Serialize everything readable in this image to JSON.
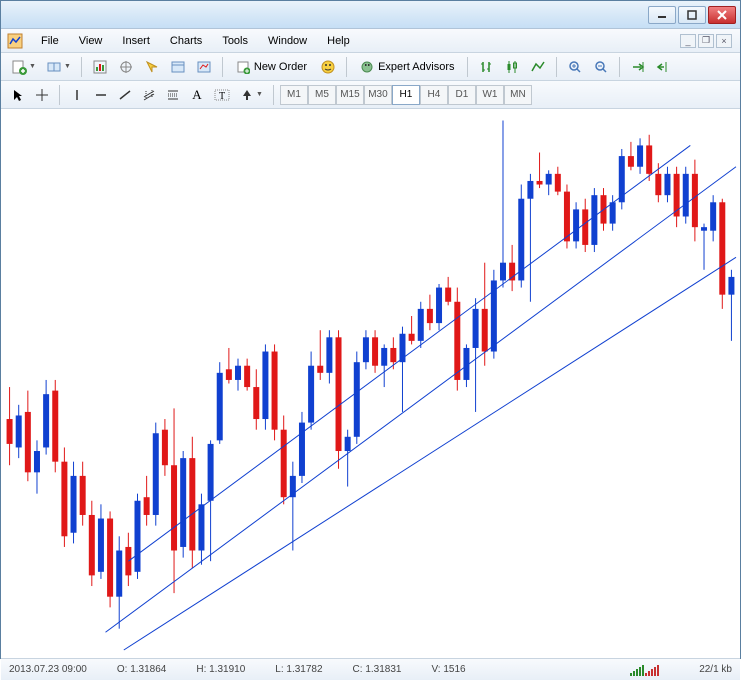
{
  "menu": {
    "items": [
      "File",
      "View",
      "Insert",
      "Charts",
      "Tools",
      "Window",
      "Help"
    ]
  },
  "toolbar": {
    "new_order_label": "New Order",
    "expert_advisors_label": "Expert Advisors"
  },
  "timeframes": {
    "items": [
      "M1",
      "M5",
      "M15",
      "M30",
      "H1",
      "H4",
      "D1",
      "W1",
      "MN"
    ],
    "active_index": 4
  },
  "chart": {
    "type": "candlestick",
    "background_color": "#ffffff",
    "bull_color": "#1040d0",
    "bear_color": "#e01818",
    "channel_line_color": "#1040d0",
    "channel_line_width": 1,
    "xlim": [
      0,
      80
    ],
    "ylim": [
      1.3,
      1.33
    ],
    "candle_width": 6,
    "channel_lines": [
      {
        "x1": 13.5,
        "y1": 1.305,
        "x2": 75,
        "y2": 1.3284
      },
      {
        "x1": 11,
        "y1": 1.301,
        "x2": 80,
        "y2": 1.3272
      },
      {
        "x1": 13,
        "y1": 1.3,
        "x2": 80,
        "y2": 1.3221
      }
    ],
    "candles": [
      {
        "o": 1.313,
        "h": 1.3148,
        "l": 1.3104,
        "c": 1.3116,
        "t": "bear"
      },
      {
        "o": 1.3114,
        "h": 1.3138,
        "l": 1.3108,
        "c": 1.3132,
        "t": "bull"
      },
      {
        "o": 1.3134,
        "h": 1.3146,
        "l": 1.3095,
        "c": 1.31,
        "t": "bear"
      },
      {
        "o": 1.31,
        "h": 1.3118,
        "l": 1.3088,
        "c": 1.3112,
        "t": "bull"
      },
      {
        "o": 1.3114,
        "h": 1.3152,
        "l": 1.311,
        "c": 1.3144,
        "t": "bull"
      },
      {
        "o": 1.3146,
        "h": 1.3152,
        "l": 1.31,
        "c": 1.3106,
        "t": "bear"
      },
      {
        "o": 1.3106,
        "h": 1.3114,
        "l": 1.3058,
        "c": 1.3064,
        "t": "bear"
      },
      {
        "o": 1.3066,
        "h": 1.3106,
        "l": 1.306,
        "c": 1.3098,
        "t": "bull"
      },
      {
        "o": 1.3098,
        "h": 1.3106,
        "l": 1.307,
        "c": 1.3076,
        "t": "bear"
      },
      {
        "o": 1.3076,
        "h": 1.3084,
        "l": 1.3036,
        "c": 1.3042,
        "t": "bear"
      },
      {
        "o": 1.3044,
        "h": 1.3082,
        "l": 1.304,
        "c": 1.3074,
        "t": "bull"
      },
      {
        "o": 1.3074,
        "h": 1.3078,
        "l": 1.3024,
        "c": 1.303,
        "t": "bear"
      },
      {
        "o": 1.303,
        "h": 1.3064,
        "l": 1.3012,
        "c": 1.3056,
        "t": "bull"
      },
      {
        "o": 1.3058,
        "h": 1.3066,
        "l": 1.3036,
        "c": 1.3042,
        "t": "bear"
      },
      {
        "o": 1.3044,
        "h": 1.3088,
        "l": 1.304,
        "c": 1.3084,
        "t": "bull"
      },
      {
        "o": 1.3086,
        "h": 1.3098,
        "l": 1.307,
        "c": 1.3076,
        "t": "bear"
      },
      {
        "o": 1.3076,
        "h": 1.3128,
        "l": 1.307,
        "c": 1.3122,
        "t": "bull"
      },
      {
        "o": 1.3124,
        "h": 1.313,
        "l": 1.3098,
        "c": 1.3104,
        "t": "bear"
      },
      {
        "o": 1.3104,
        "h": 1.3136,
        "l": 1.3032,
        "c": 1.3056,
        "t": "bear"
      },
      {
        "o": 1.3058,
        "h": 1.3112,
        "l": 1.3052,
        "c": 1.3108,
        "t": "bull"
      },
      {
        "o": 1.3108,
        "h": 1.312,
        "l": 1.3046,
        "c": 1.3056,
        "t": "bear"
      },
      {
        "o": 1.3056,
        "h": 1.3088,
        "l": 1.3048,
        "c": 1.3082,
        "t": "bull"
      },
      {
        "o": 1.3084,
        "h": 1.3118,
        "l": 1.305,
        "c": 1.3116,
        "t": "bull"
      },
      {
        "o": 1.3118,
        "h": 1.3162,
        "l": 1.3116,
        "c": 1.3156,
        "t": "bull"
      },
      {
        "o": 1.3158,
        "h": 1.317,
        "l": 1.315,
        "c": 1.3152,
        "t": "bear"
      },
      {
        "o": 1.3152,
        "h": 1.3164,
        "l": 1.3146,
        "c": 1.316,
        "t": "bull"
      },
      {
        "o": 1.316,
        "h": 1.3164,
        "l": 1.3146,
        "c": 1.3148,
        "t": "bear"
      },
      {
        "o": 1.3148,
        "h": 1.3158,
        "l": 1.3124,
        "c": 1.313,
        "t": "bear"
      },
      {
        "o": 1.313,
        "h": 1.3172,
        "l": 1.3124,
        "c": 1.3168,
        "t": "bull"
      },
      {
        "o": 1.3168,
        "h": 1.3172,
        "l": 1.3118,
        "c": 1.3124,
        "t": "bear"
      },
      {
        "o": 1.3124,
        "h": 1.3132,
        "l": 1.3082,
        "c": 1.3086,
        "t": "bear"
      },
      {
        "o": 1.3086,
        "h": 1.3106,
        "l": 1.3056,
        "c": 1.3098,
        "t": "bull"
      },
      {
        "o": 1.3098,
        "h": 1.3134,
        "l": 1.3094,
        "c": 1.3128,
        "t": "bull"
      },
      {
        "o": 1.3128,
        "h": 1.3168,
        "l": 1.3124,
        "c": 1.316,
        "t": "bull"
      },
      {
        "o": 1.316,
        "h": 1.318,
        "l": 1.3152,
        "c": 1.3156,
        "t": "bear"
      },
      {
        "o": 1.3156,
        "h": 1.318,
        "l": 1.315,
        "c": 1.3176,
        "t": "bull"
      },
      {
        "o": 1.3176,
        "h": 1.318,
        "l": 1.3102,
        "c": 1.3112,
        "t": "bear"
      },
      {
        "o": 1.3112,
        "h": 1.3124,
        "l": 1.3092,
        "c": 1.312,
        "t": "bull"
      },
      {
        "o": 1.312,
        "h": 1.3168,
        "l": 1.3116,
        "c": 1.3162,
        "t": "bull"
      },
      {
        "o": 1.3162,
        "h": 1.318,
        "l": 1.3158,
        "c": 1.3176,
        "t": "bull"
      },
      {
        "o": 1.3176,
        "h": 1.318,
        "l": 1.3156,
        "c": 1.316,
        "t": "bear"
      },
      {
        "o": 1.316,
        "h": 1.3172,
        "l": 1.3148,
        "c": 1.317,
        "t": "bull"
      },
      {
        "o": 1.317,
        "h": 1.3176,
        "l": 1.3158,
        "c": 1.3162,
        "t": "bear"
      },
      {
        "o": 1.3162,
        "h": 1.3182,
        "l": 1.3134,
        "c": 1.3178,
        "t": "bull"
      },
      {
        "o": 1.3178,
        "h": 1.3188,
        "l": 1.3172,
        "c": 1.3174,
        "t": "bear"
      },
      {
        "o": 1.3174,
        "h": 1.3196,
        "l": 1.317,
        "c": 1.3192,
        "t": "bull"
      },
      {
        "o": 1.3192,
        "h": 1.32,
        "l": 1.318,
        "c": 1.3184,
        "t": "bear"
      },
      {
        "o": 1.3184,
        "h": 1.3206,
        "l": 1.318,
        "c": 1.3204,
        "t": "bull"
      },
      {
        "o": 1.3204,
        "h": 1.321,
        "l": 1.3194,
        "c": 1.3196,
        "t": "bear"
      },
      {
        "o": 1.3196,
        "h": 1.3204,
        "l": 1.3146,
        "c": 1.3152,
        "t": "bear"
      },
      {
        "o": 1.3152,
        "h": 1.3172,
        "l": 1.3148,
        "c": 1.317,
        "t": "bull"
      },
      {
        "o": 1.317,
        "h": 1.3198,
        "l": 1.3134,
        "c": 1.3192,
        "t": "bull"
      },
      {
        "o": 1.3192,
        "h": 1.3218,
        "l": 1.316,
        "c": 1.3168,
        "t": "bear"
      },
      {
        "o": 1.3168,
        "h": 1.3214,
        "l": 1.3164,
        "c": 1.3208,
        "t": "bull"
      },
      {
        "o": 1.3208,
        "h": 1.3298,
        "l": 1.3204,
        "c": 1.3218,
        "t": "bull"
      },
      {
        "o": 1.3218,
        "h": 1.3228,
        "l": 1.3202,
        "c": 1.3208,
        "t": "bear"
      },
      {
        "o": 1.3208,
        "h": 1.3262,
        "l": 1.3204,
        "c": 1.3254,
        "t": "bull"
      },
      {
        "o": 1.3254,
        "h": 1.3268,
        "l": 1.3196,
        "c": 1.3264,
        "t": "bull"
      },
      {
        "o": 1.3264,
        "h": 1.328,
        "l": 1.326,
        "c": 1.3262,
        "t": "bear"
      },
      {
        "o": 1.3262,
        "h": 1.327,
        "l": 1.3256,
        "c": 1.3268,
        "t": "bull"
      },
      {
        "o": 1.3268,
        "h": 1.3272,
        "l": 1.3256,
        "c": 1.3258,
        "t": "bear"
      },
      {
        "o": 1.3258,
        "h": 1.3262,
        "l": 1.3226,
        "c": 1.323,
        "t": "bear"
      },
      {
        "o": 1.323,
        "h": 1.3252,
        "l": 1.3226,
        "c": 1.3248,
        "t": "bull"
      },
      {
        "o": 1.3248,
        "h": 1.3254,
        "l": 1.3224,
        "c": 1.3228,
        "t": "bear"
      },
      {
        "o": 1.3228,
        "h": 1.326,
        "l": 1.3224,
        "c": 1.3256,
        "t": "bull"
      },
      {
        "o": 1.3256,
        "h": 1.326,
        "l": 1.3236,
        "c": 1.324,
        "t": "bear"
      },
      {
        "o": 1.324,
        "h": 1.3256,
        "l": 1.3236,
        "c": 1.3252,
        "t": "bull"
      },
      {
        "o": 1.3252,
        "h": 1.3282,
        "l": 1.3248,
        "c": 1.3278,
        "t": "bull"
      },
      {
        "o": 1.3278,
        "h": 1.3286,
        "l": 1.327,
        "c": 1.3272,
        "t": "bear"
      },
      {
        "o": 1.3272,
        "h": 1.3288,
        "l": 1.3268,
        "c": 1.3284,
        "t": "bull"
      },
      {
        "o": 1.3284,
        "h": 1.329,
        "l": 1.3264,
        "c": 1.3268,
        "t": "bear"
      },
      {
        "o": 1.3268,
        "h": 1.3274,
        "l": 1.3252,
        "c": 1.3256,
        "t": "bear"
      },
      {
        "o": 1.3256,
        "h": 1.3272,
        "l": 1.3252,
        "c": 1.3268,
        "t": "bull"
      },
      {
        "o": 1.3268,
        "h": 1.3272,
        "l": 1.3238,
        "c": 1.3244,
        "t": "bear"
      },
      {
        "o": 1.3244,
        "h": 1.3272,
        "l": 1.324,
        "c": 1.3268,
        "t": "bull"
      },
      {
        "o": 1.3268,
        "h": 1.3276,
        "l": 1.323,
        "c": 1.3238,
        "t": "bear"
      },
      {
        "o": 1.3238,
        "h": 1.324,
        "l": 1.3214,
        "c": 1.3236,
        "t": "bull"
      },
      {
        "o": 1.3236,
        "h": 1.3256,
        "l": 1.323,
        "c": 1.3252,
        "t": "bull"
      },
      {
        "o": 1.3252,
        "h": 1.3254,
        "l": 1.3192,
        "c": 1.32,
        "t": "bear"
      },
      {
        "o": 1.32,
        "h": 1.3214,
        "l": 1.3174,
        "c": 1.321,
        "t": "bull"
      }
    ]
  },
  "status": {
    "datetime": "2013.07.23 09:00",
    "open_label": "O: 1.31864",
    "high_label": "H: 1.31910",
    "low_label": "L: 1.31782",
    "close_label": "C: 1.31831",
    "volume_label": "V: 1516",
    "bandwidth": "22/1 kb"
  }
}
